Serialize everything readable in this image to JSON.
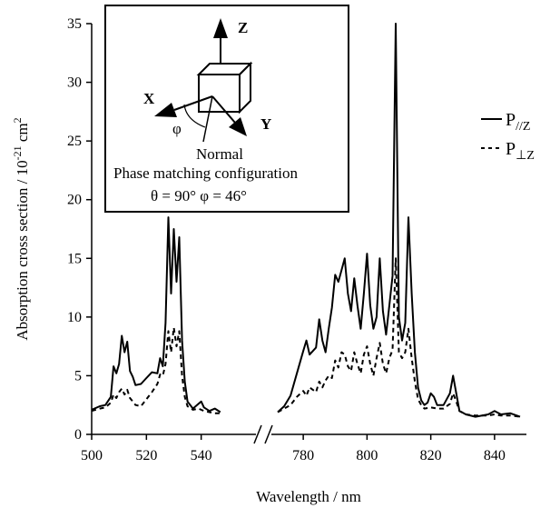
{
  "chart_data": {
    "type": "line",
    "xlabel": "Wavelength / nm",
    "ylabel": "Absorption cross section / 10",
    "ylabel_exp": "-21",
    "ylabel_unit": " cm",
    "ylabel_unit_exp": "2",
    "ylim": [
      0,
      35
    ],
    "y_ticks": [
      0,
      5,
      10,
      15,
      20,
      25,
      30,
      35
    ],
    "axis_break": true,
    "segments": [
      {
        "xlim": [
          500,
          560
        ],
        "x_ticks": [
          500,
          520,
          540
        ]
      },
      {
        "xlim": [
          770,
          850
        ],
        "x_ticks": [
          780,
          800,
          820,
          840
        ]
      }
    ],
    "legend": [
      {
        "label": "P",
        "sub": "//Z",
        "style": "solid"
      },
      {
        "label": "P",
        "sub": "⊥Z",
        "style": "dashed"
      }
    ],
    "series": [
      {
        "style": "solid",
        "seg1": [
          [
            500,
            2.1
          ],
          [
            503,
            2.4
          ],
          [
            505,
            2.5
          ],
          [
            507,
            3.2
          ],
          [
            508,
            5.8
          ],
          [
            509,
            5.2
          ],
          [
            510,
            6.0
          ],
          [
            511,
            8.4
          ],
          [
            512,
            7.0
          ],
          [
            513,
            7.9
          ],
          [
            514,
            5.4
          ],
          [
            515,
            4.9
          ],
          [
            516,
            4.2
          ],
          [
            518,
            4.3
          ],
          [
            520,
            4.8
          ],
          [
            522,
            5.3
          ],
          [
            524,
            5.2
          ],
          [
            525,
            6.5
          ],
          [
            526,
            5.8
          ],
          [
            527,
            9.5
          ],
          [
            528,
            18.5
          ],
          [
            529,
            12.0
          ],
          [
            530,
            17.5
          ],
          [
            531,
            13.0
          ],
          [
            532,
            16.8
          ],
          [
            533,
            8.0
          ],
          [
            534,
            4.5
          ],
          [
            535,
            2.8
          ],
          [
            537,
            2.2
          ],
          [
            538,
            2.4
          ],
          [
            540,
            2.8
          ],
          [
            541,
            2.3
          ],
          [
            543,
            2.0
          ],
          [
            545,
            2.2
          ],
          [
            547,
            1.9
          ]
        ],
        "seg2": [
          [
            772,
            1.9
          ],
          [
            774,
            2.4
          ],
          [
            776,
            3.3
          ],
          [
            778,
            5.2
          ],
          [
            780,
            7.1
          ],
          [
            781,
            8.0
          ],
          [
            782,
            6.8
          ],
          [
            784,
            7.4
          ],
          [
            785,
            9.8
          ],
          [
            786,
            8.0
          ],
          [
            787,
            7.0
          ],
          [
            788,
            9.0
          ],
          [
            789,
            10.8
          ],
          [
            790,
            13.6
          ],
          [
            791,
            13.0
          ],
          [
            792,
            14.0
          ],
          [
            793,
            15.0
          ],
          [
            794,
            12.0
          ],
          [
            795,
            10.5
          ],
          [
            796,
            13.3
          ],
          [
            797,
            11.0
          ],
          [
            798,
            9.0
          ],
          [
            799,
            12.0
          ],
          [
            800,
            15.4
          ],
          [
            801,
            11.0
          ],
          [
            802,
            9.0
          ],
          [
            803,
            10.0
          ],
          [
            804,
            15.0
          ],
          [
            805,
            10.5
          ],
          [
            806,
            8.5
          ],
          [
            807,
            11.0
          ],
          [
            808,
            13.5
          ],
          [
            809,
            35.0
          ],
          [
            810,
            10.0
          ],
          [
            811,
            8.0
          ],
          [
            812,
            9.5
          ],
          [
            813,
            18.5
          ],
          [
            814,
            12.0
          ],
          [
            815,
            7.0
          ],
          [
            816,
            4.0
          ],
          [
            817,
            2.9
          ],
          [
            818,
            2.5
          ],
          [
            819,
            2.7
          ],
          [
            820,
            3.5
          ],
          [
            821,
            3.2
          ],
          [
            822,
            2.5
          ],
          [
            824,
            2.5
          ],
          [
            826,
            3.5
          ],
          [
            827,
            5.0
          ],
          [
            828,
            3.5
          ],
          [
            829,
            2.0
          ],
          [
            831,
            1.7
          ],
          [
            834,
            1.5
          ],
          [
            838,
            1.7
          ],
          [
            840,
            2.0
          ],
          [
            842,
            1.7
          ],
          [
            845,
            1.8
          ],
          [
            848,
            1.5
          ]
        ]
      },
      {
        "style": "dashed",
        "seg1": [
          [
            500,
            2.0
          ],
          [
            503,
            2.2
          ],
          [
            505,
            2.3
          ],
          [
            507,
            2.7
          ],
          [
            508,
            3.4
          ],
          [
            509,
            3.1
          ],
          [
            510,
            3.6
          ],
          [
            511,
            3.9
          ],
          [
            512,
            3.4
          ],
          [
            513,
            3.8
          ],
          [
            514,
            3.1
          ],
          [
            515,
            2.8
          ],
          [
            516,
            2.5
          ],
          [
            518,
            2.4
          ],
          [
            520,
            3.0
          ],
          [
            522,
            3.6
          ],
          [
            524,
            4.3
          ],
          [
            525,
            5.1
          ],
          [
            526,
            5.0
          ],
          [
            527,
            6.0
          ],
          [
            528,
            8.8
          ],
          [
            529,
            7.0
          ],
          [
            530,
            9.1
          ],
          [
            531,
            7.5
          ],
          [
            532,
            8.8
          ],
          [
            533,
            5.0
          ],
          [
            534,
            3.2
          ],
          [
            535,
            2.4
          ],
          [
            537,
            2.1
          ],
          [
            539,
            2.2
          ],
          [
            541,
            2.0
          ],
          [
            543,
            1.9
          ],
          [
            545,
            1.8
          ],
          [
            547,
            1.8
          ]
        ],
        "seg2": [
          [
            772,
            1.9
          ],
          [
            774,
            2.2
          ],
          [
            776,
            2.5
          ],
          [
            778,
            3.2
          ],
          [
            780,
            3.7
          ],
          [
            781,
            3.3
          ],
          [
            782,
            4.0
          ],
          [
            784,
            3.6
          ],
          [
            785,
            4.5
          ],
          [
            786,
            4.0
          ],
          [
            787,
            4.6
          ],
          [
            788,
            5.0
          ],
          [
            789,
            4.8
          ],
          [
            790,
            6.3
          ],
          [
            791,
            5.7
          ],
          [
            792,
            7.0
          ],
          [
            793,
            6.8
          ],
          [
            794,
            5.8
          ],
          [
            795,
            5.4
          ],
          [
            796,
            7.0
          ],
          [
            797,
            6.0
          ],
          [
            798,
            5.2
          ],
          [
            799,
            6.8
          ],
          [
            800,
            7.5
          ],
          [
            801,
            6.0
          ],
          [
            802,
            5.0
          ],
          [
            803,
            6.5
          ],
          [
            804,
            7.8
          ],
          [
            805,
            6.0
          ],
          [
            806,
            5.2
          ],
          [
            807,
            6.5
          ],
          [
            808,
            7.2
          ],
          [
            809,
            15.0
          ],
          [
            810,
            7.0
          ],
          [
            811,
            6.5
          ],
          [
            812,
            7.0
          ],
          [
            813,
            9.0
          ],
          [
            814,
            6.5
          ],
          [
            815,
            4.5
          ],
          [
            816,
            3.0
          ],
          [
            817,
            2.5
          ],
          [
            818,
            2.2
          ],
          [
            820,
            2.3
          ],
          [
            822,
            2.2
          ],
          [
            824,
            2.2
          ],
          [
            826,
            2.6
          ],
          [
            827,
            3.5
          ],
          [
            828,
            2.8
          ],
          [
            829,
            2.0
          ],
          [
            831,
            1.7
          ],
          [
            834,
            1.6
          ],
          [
            838,
            1.6
          ],
          [
            840,
            1.7
          ],
          [
            842,
            1.6
          ],
          [
            845,
            1.6
          ],
          [
            848,
            1.5
          ]
        ]
      }
    ]
  },
  "inset": {
    "axis_z": "Z",
    "axis_x": "X",
    "axis_y": "Y",
    "phi_symbol": "φ",
    "normal_label": "Normal",
    "caption_line1": "Phase matching configuration",
    "caption_line2": "θ = 90°  φ = 46°"
  }
}
